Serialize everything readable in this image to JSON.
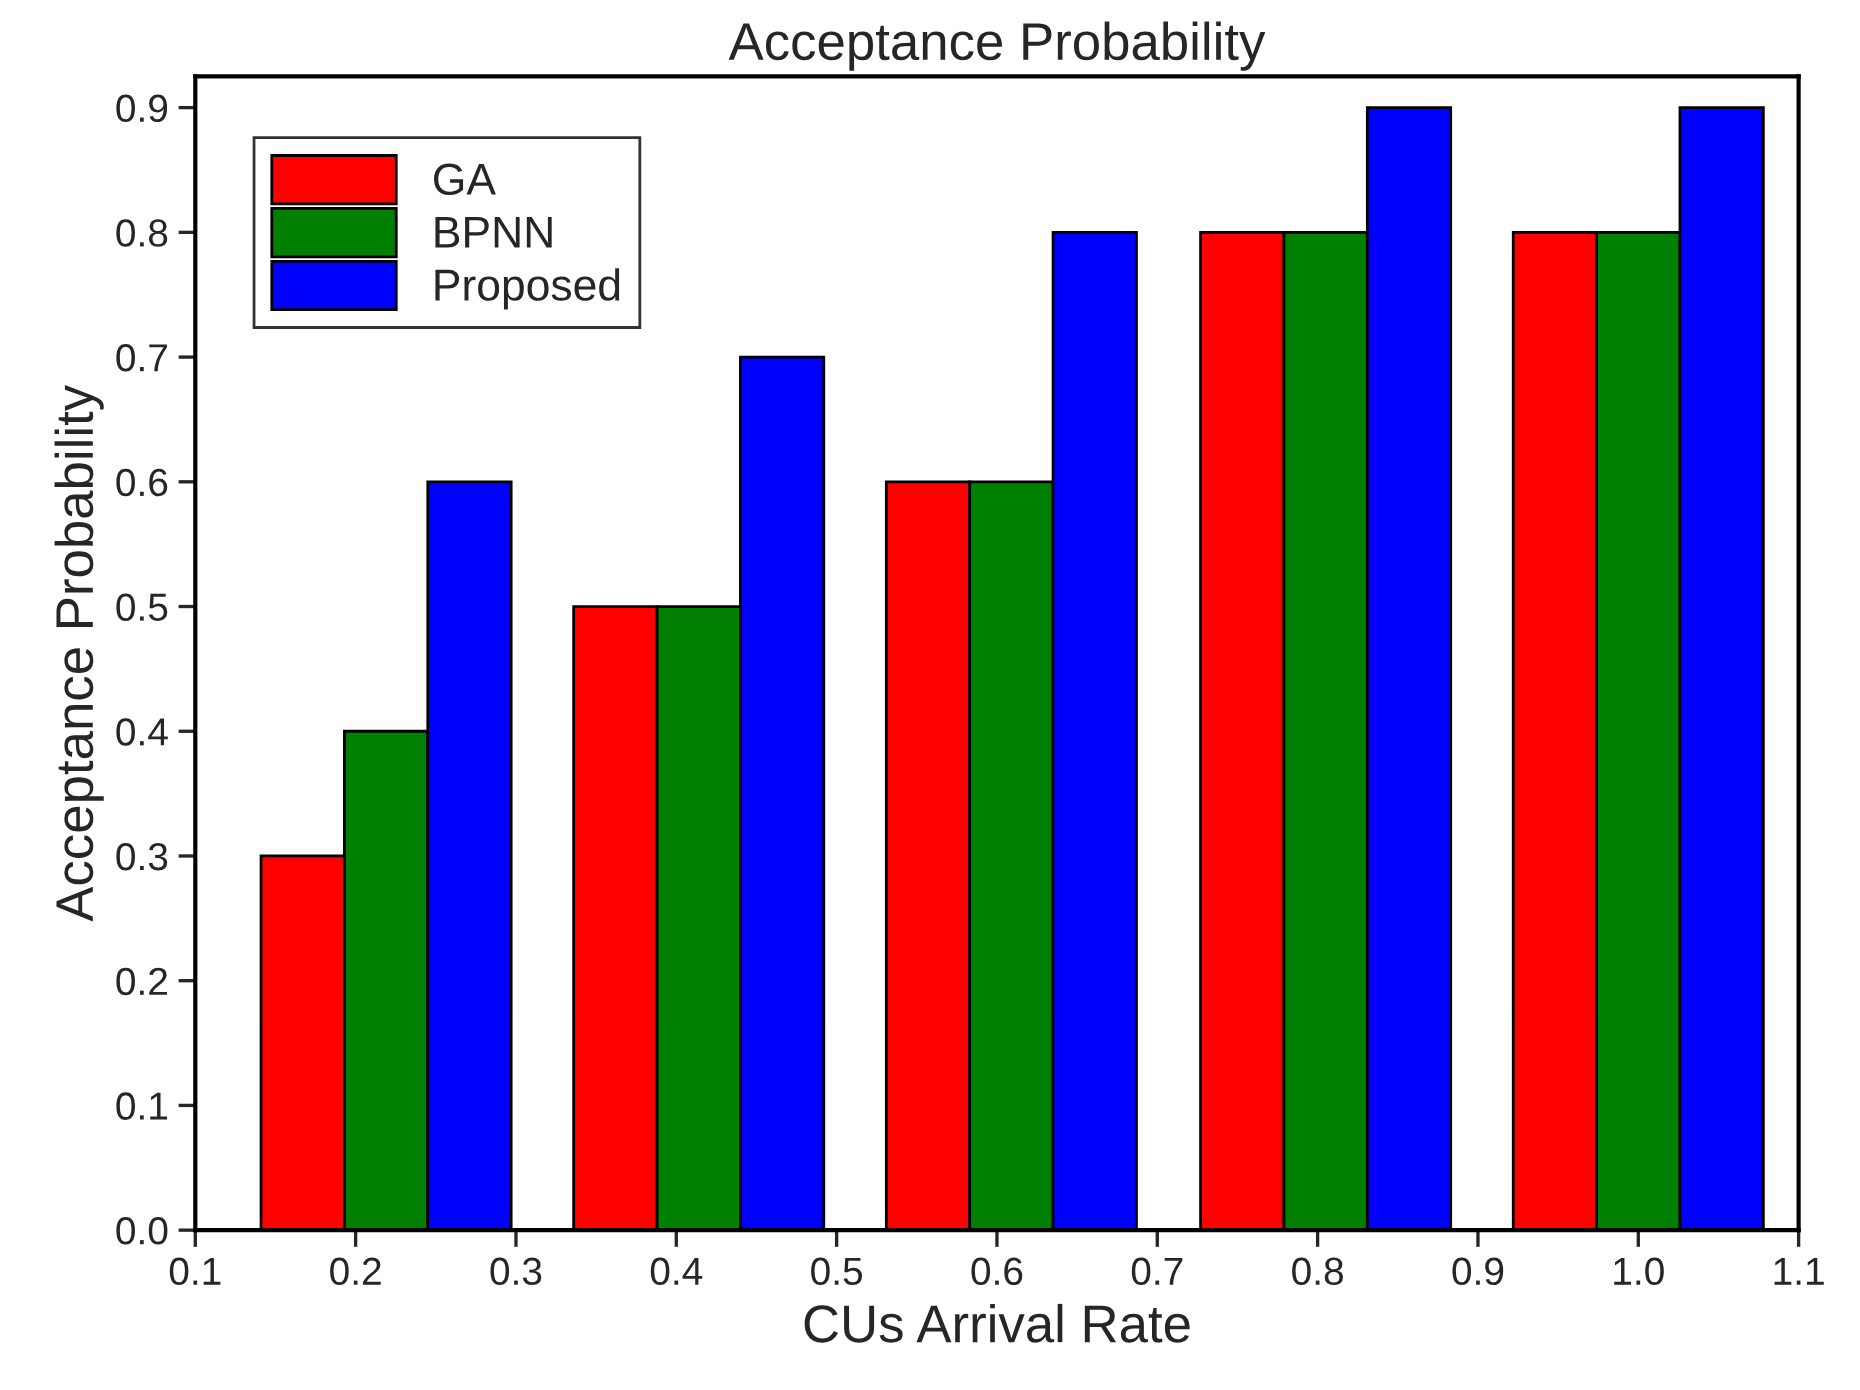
{
  "chart_data": {
    "type": "bar",
    "title": "Acceptance Probability",
    "xlabel": "CUs Arrival Rate",
    "ylabel": "Acceptance Probability",
    "series": [
      {
        "name": "GA",
        "color": "#ff0000",
        "x": [
          0.167,
          0.362,
          0.557,
          0.753,
          0.948
        ],
        "values": [
          0.3,
          0.5,
          0.6,
          0.8,
          0.8
        ]
      },
      {
        "name": "BPNN",
        "color": "#007f00",
        "x": [
          0.219,
          0.414,
          0.609,
          0.805,
          1.0
        ],
        "values": [
          0.4,
          0.5,
          0.6,
          0.8,
          0.8
        ]
      },
      {
        "name": "Proposed",
        "color": "#0000ff",
        "x": [
          0.271,
          0.466,
          0.661,
          0.857,
          1.052
        ],
        "values": [
          0.6,
          0.7,
          0.8,
          0.9,
          0.9
        ]
      }
    ],
    "xlim": [
      0.1,
      1.1
    ],
    "xticks": [
      0.1,
      0.2,
      0.3,
      0.4,
      0.5,
      0.6,
      0.7,
      0.8,
      0.9,
      {
        "value": 1,
        "label": "1.0"
      },
      1.1
    ],
    "ylim": [
      0,
      0.925
    ],
    "yticks": [
      {
        "value": 0,
        "label": "0.0"
      },
      0.1,
      0.2,
      0.3,
      0.4,
      0.5,
      0.6,
      0.7,
      0.8,
      0.9
    ],
    "grid": false,
    "legend": "top left"
  }
}
